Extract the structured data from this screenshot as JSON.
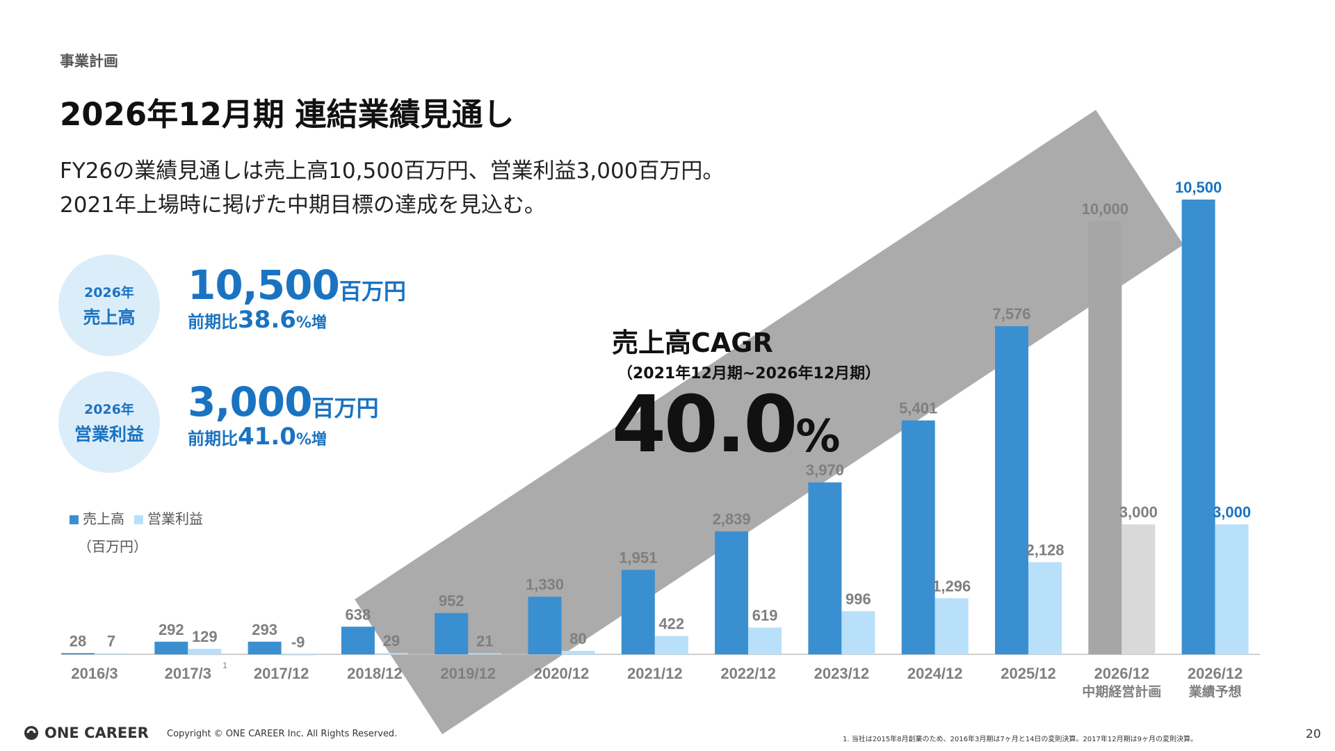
{
  "header": {
    "section": "事業計画",
    "title": "2026年12月期 連結業績見通し",
    "lead_line1": "FY26の業績見通しは売上高10,500百万円、営業利益3,000百万円。",
    "lead_line2": "2021年上場時に掲げた中期目標の達成を見込む。"
  },
  "kpis": [
    {
      "year": "2026年",
      "name": "売上高",
      "value": "10,500",
      "unit": "百万円",
      "yoy_prefix": "前期比",
      "yoy_value": "38.6",
      "yoy_suffix": "%増"
    },
    {
      "year": "2026年",
      "name": "営業利益",
      "value": "3,000",
      "unit": "百万円",
      "yoy_prefix": "前期比",
      "yoy_value": "41.0",
      "yoy_suffix": "%増"
    }
  ],
  "cagr": {
    "heading": "売上高CAGR",
    "period": "（2021年12月期~2026年12月期）",
    "value": "40.0",
    "suffix": "%"
  },
  "colors": {
    "revenue": "#3a8fd0",
    "profit": "#b8e0fa",
    "plan_revenue": "#a6a6a6",
    "plan_profit": "#d9d9d9",
    "accent": "#1a73c1",
    "arrow": "#a6a6a6"
  },
  "chart_data": {
    "type": "bar",
    "unit_label": "（百万円）",
    "categories": [
      "2016/3",
      "2017/3",
      "2017/12",
      "2018/12",
      "2019/12",
      "2020/12",
      "2021/12",
      "2022/12",
      "2023/12",
      "2024/12",
      "2025/12",
      "2026/12",
      "2026/12"
    ],
    "category_sublabels": [
      "",
      "",
      "",
      "",
      "",
      "",
      "",
      "",
      "",
      "",
      "",
      "中期経営計画",
      "業績予想"
    ],
    "category_footnote": {
      "index": 1,
      "mark": "1"
    },
    "series": [
      {
        "name": "売上高",
        "values": [
          28,
          292,
          293,
          638,
          952,
          1330,
          1951,
          2839,
          3970,
          5401,
          7576,
          10000,
          10500
        ],
        "labels": [
          "28",
          "292",
          "293",
          "638",
          "952",
          "1,330",
          "1,951",
          "2,839",
          "3,970",
          "5,401",
          "7,576",
          "10,000",
          "10,500"
        ]
      },
      {
        "name": "営業利益",
        "values": [
          7,
          129,
          -9,
          29,
          21,
          80,
          422,
          619,
          996,
          1296,
          2128,
          3000,
          3000
        ],
        "labels": [
          "7",
          "129",
          "-9",
          "29",
          "21",
          "80",
          "422",
          "619",
          "996",
          "1,296",
          "2,128",
          "3,000",
          "3,000"
        ]
      }
    ],
    "ylim": [
      0,
      10500
    ],
    "grid": false,
    "legend_position": "top-left"
  },
  "footer": {
    "logo_text": "ONE CAREER",
    "copyright": "Copyright © ONE CAREER Inc. All Rights Reserved.",
    "footnote": "1. 当社は2015年8月創業のため、2016年3月期は7ヶ月と14日の変則決算。2017年12月期は9ヶ月の変則決算。",
    "page_number": "20"
  }
}
